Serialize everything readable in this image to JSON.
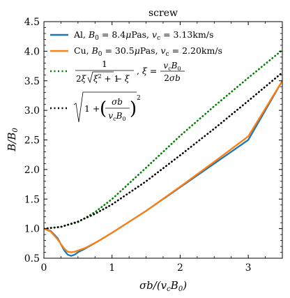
{
  "chart_data": {
    "type": "line",
    "title": "screw",
    "xlabel": "σb/(v_cB_0)",
    "ylabel": "B/B_0",
    "xlim": [
      0,
      3.5
    ],
    "ylim": [
      0.5,
      4.5
    ],
    "x_ticks": [
      "0",
      "1",
      "2",
      "3"
    ],
    "y_ticks": [
      "0.5",
      "1.0",
      "1.5",
      "2.0",
      "2.5",
      "3.0",
      "3.5",
      "4.0",
      "4.5"
    ],
    "legend_position": "top-left",
    "grid": false,
    "series": [
      {
        "name": "Al, B_0 = 8.4μPas, v_c = 3.13km/s",
        "color": "#1f77b4",
        "style": "solid",
        "points": [
          [
            0,
            1.0
          ],
          [
            0.1,
            0.96
          ],
          [
            0.2,
            0.84
          ],
          [
            0.3,
            0.63
          ],
          [
            0.35,
            0.56
          ],
          [
            0.4,
            0.54
          ],
          [
            0.45,
            0.56
          ],
          [
            0.5,
            0.6
          ],
          [
            0.6,
            0.66
          ],
          [
            0.8,
            0.79
          ],
          [
            1.0,
            0.93
          ],
          [
            1.5,
            1.3
          ],
          [
            2.0,
            1.7
          ],
          [
            2.5,
            2.1
          ],
          [
            3.0,
            2.5
          ],
          [
            3.5,
            3.5
          ]
        ]
      },
      {
        "name": "Cu, B_0 = 30.5μPas, v_c = 2.20km/s",
        "color": "#ff7f0e",
        "style": "solid",
        "points": [
          [
            0,
            1.0
          ],
          [
            0.1,
            0.95
          ],
          [
            0.2,
            0.82
          ],
          [
            0.3,
            0.66
          ],
          [
            0.35,
            0.61
          ],
          [
            0.4,
            0.6
          ],
          [
            0.45,
            0.61
          ],
          [
            0.5,
            0.63
          ],
          [
            0.6,
            0.67
          ],
          [
            0.8,
            0.79
          ],
          [
            1.0,
            0.93
          ],
          [
            1.5,
            1.3
          ],
          [
            2.0,
            1.71
          ],
          [
            2.5,
            2.13
          ],
          [
            3.0,
            2.56
          ],
          [
            3.5,
            3.5
          ]
        ]
      },
      {
        "name": "1/(2ξ√(ξ²+1) − ξ), ξ = v_cB_0/(2σb)",
        "color": "#008000",
        "style": "dotted",
        "points": [
          [
            0,
            1.0
          ],
          [
            0.25,
            1.03
          ],
          [
            0.5,
            1.11
          ],
          [
            0.75,
            1.28
          ],
          [
            1.0,
            1.5
          ],
          [
            1.5,
            2.03
          ],
          [
            2.0,
            2.57
          ],
          [
            2.5,
            3.07
          ],
          [
            3.0,
            3.55
          ],
          [
            3.5,
            4.02
          ]
        ]
      },
      {
        "name": "√(1 + (σb/(v_cB_0))²)",
        "color": "#000000",
        "style": "dotted",
        "points": [
          [
            0,
            1.0
          ],
          [
            0.25,
            1.03
          ],
          [
            0.5,
            1.12
          ],
          [
            0.75,
            1.25
          ],
          [
            1.0,
            1.41
          ],
          [
            1.5,
            1.8
          ],
          [
            2.0,
            2.24
          ],
          [
            2.5,
            2.69
          ],
          [
            3.0,
            3.16
          ],
          [
            3.5,
            3.64
          ]
        ]
      }
    ]
  }
}
